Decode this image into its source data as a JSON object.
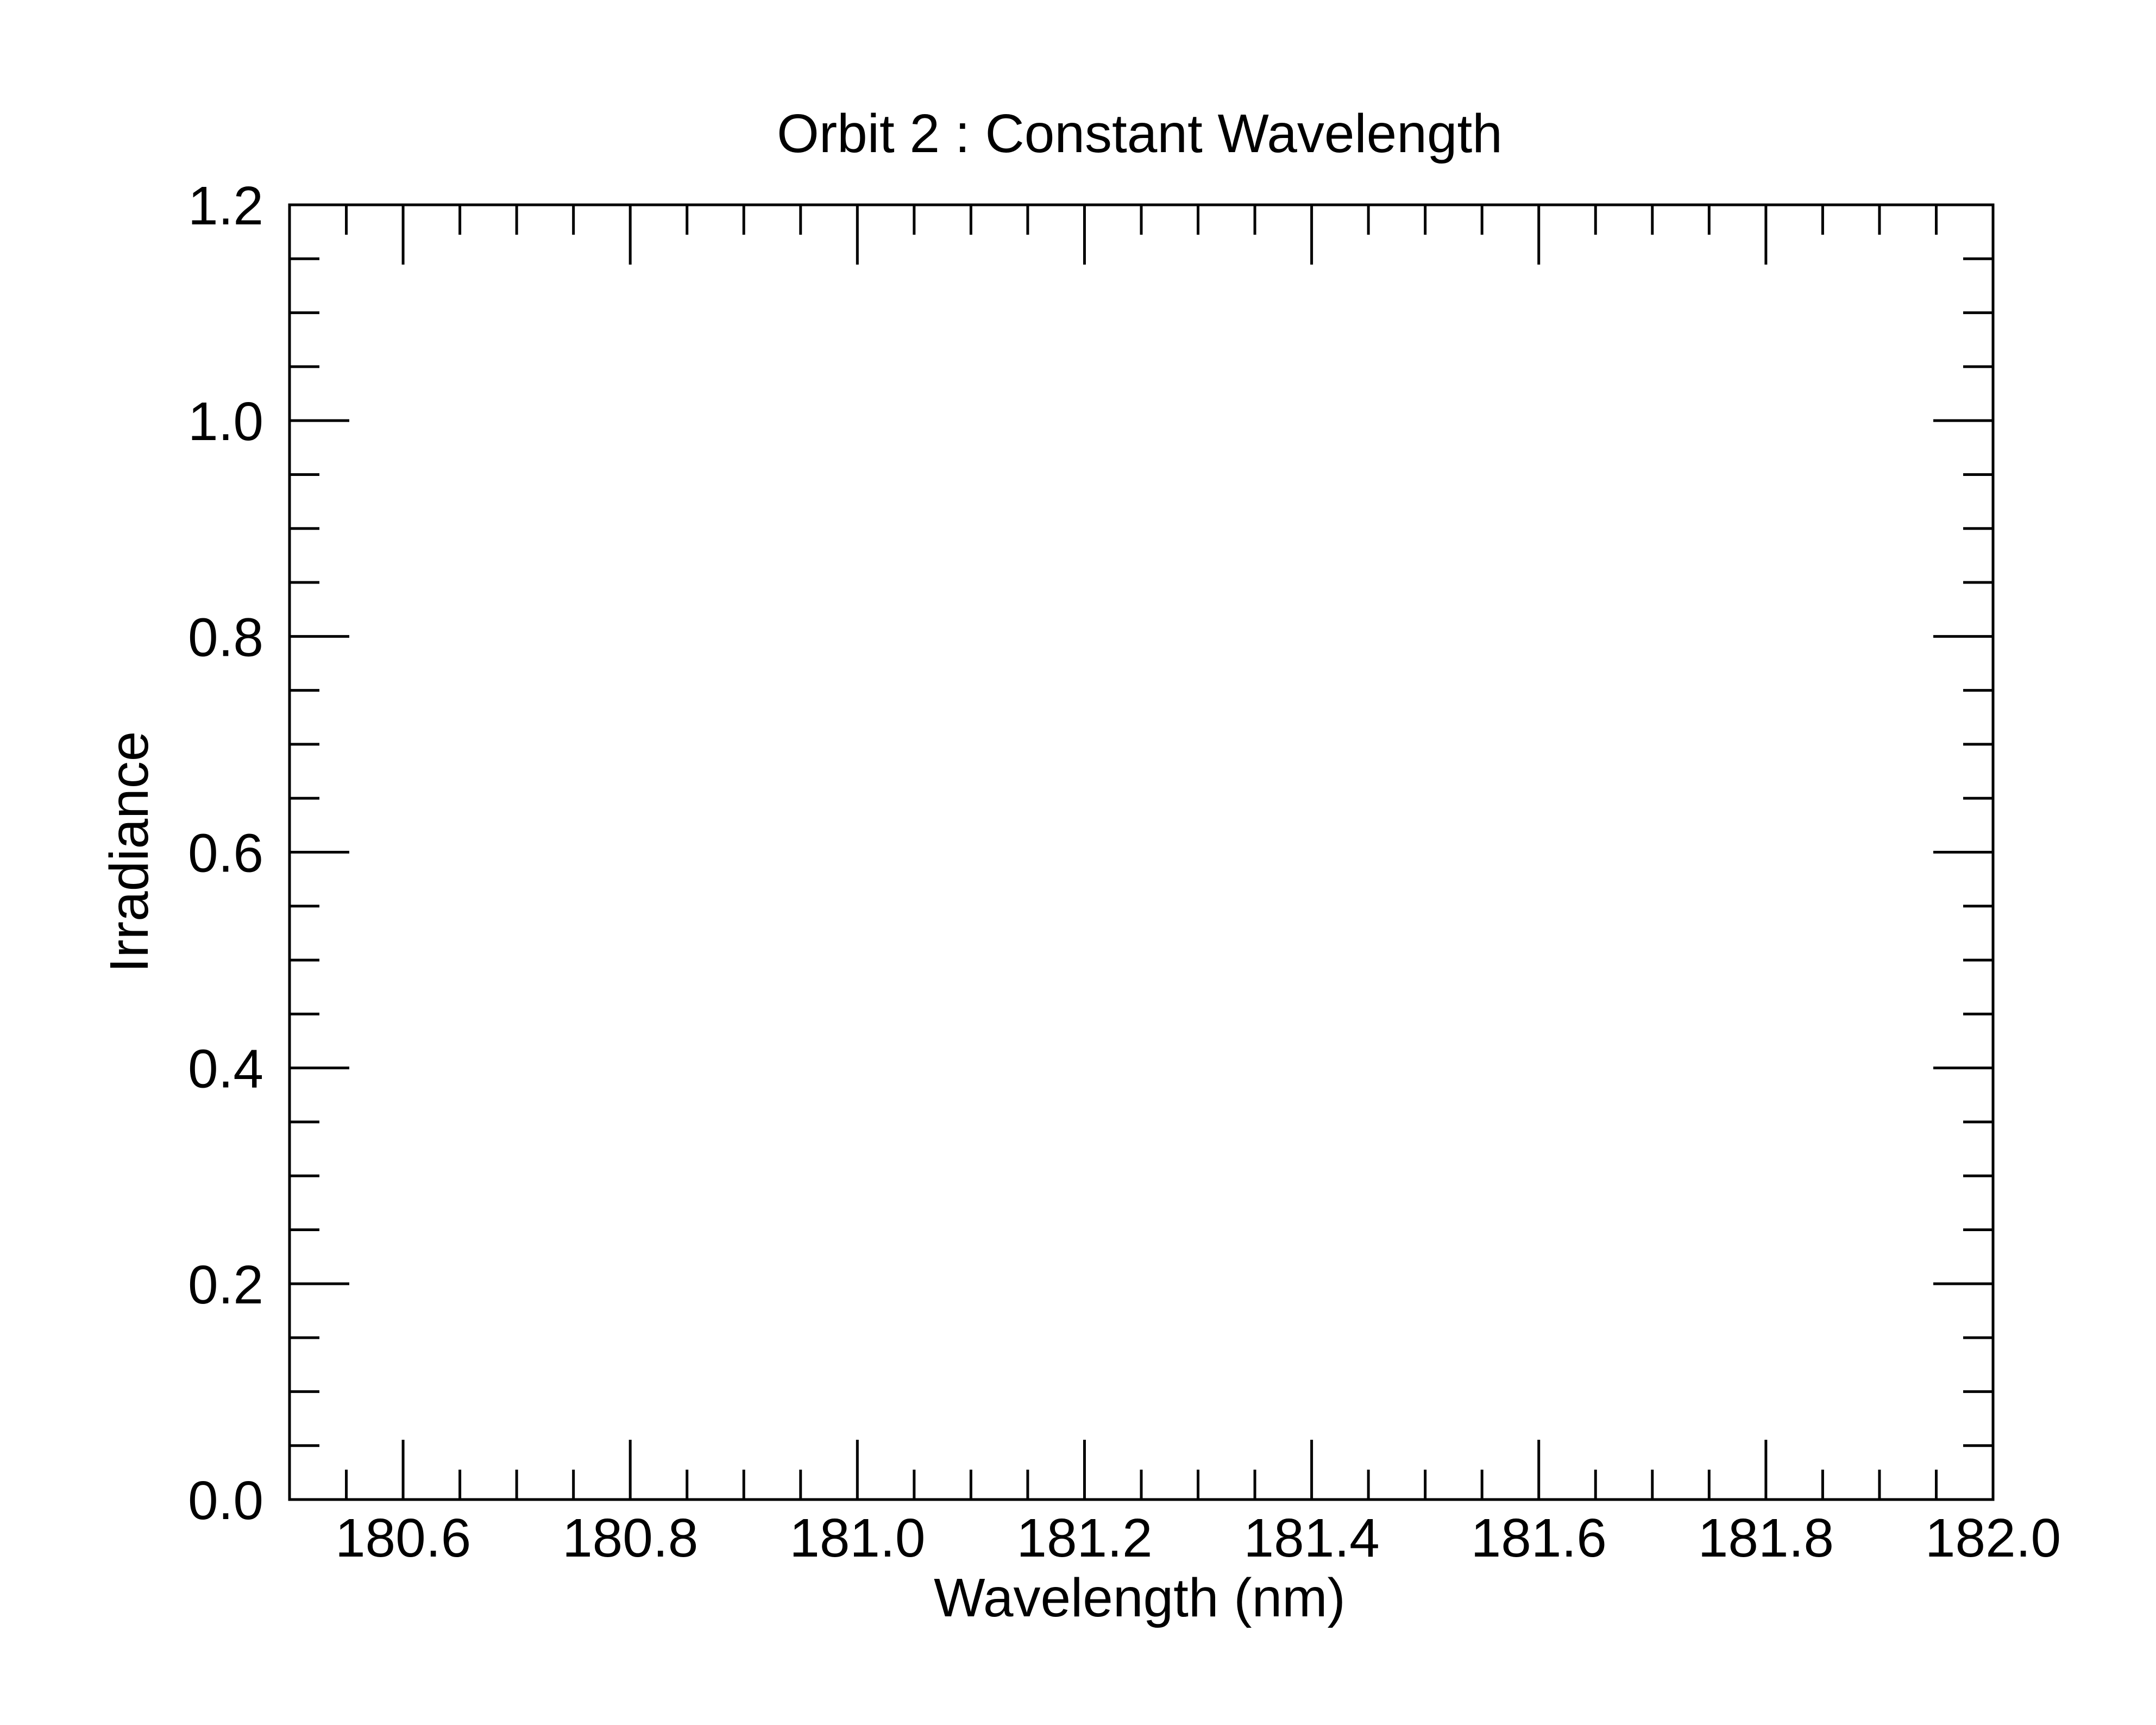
{
  "chart_data": {
    "type": "line",
    "title": "Orbit 2 : Constant Wavelength",
    "xlabel": "Wavelength (nm)",
    "ylabel": "Irradiance",
    "xlim": [
      180.5,
      182.0
    ],
    "ylim": [
      0.0,
      1.2
    ],
    "x_major_ticks": [
      180.6,
      180.8,
      181.0,
      181.2,
      181.4,
      181.6,
      181.8,
      182.0
    ],
    "x_tick_labels": [
      "180.6",
      "180.8",
      "181.0",
      "181.2",
      "181.4",
      "181.6",
      "181.8",
      "182.0"
    ],
    "x_minor_step": 0.05,
    "y_major_ticks": [
      0.0,
      0.2,
      0.4,
      0.6,
      0.8,
      1.0,
      1.2
    ],
    "y_tick_labels": [
      "0.0",
      "0.2",
      "0.4",
      "0.6",
      "0.8",
      "1.0",
      "1.2"
    ],
    "y_minor_step": 0.05,
    "series": [],
    "grid": false,
    "legend": "none"
  }
}
